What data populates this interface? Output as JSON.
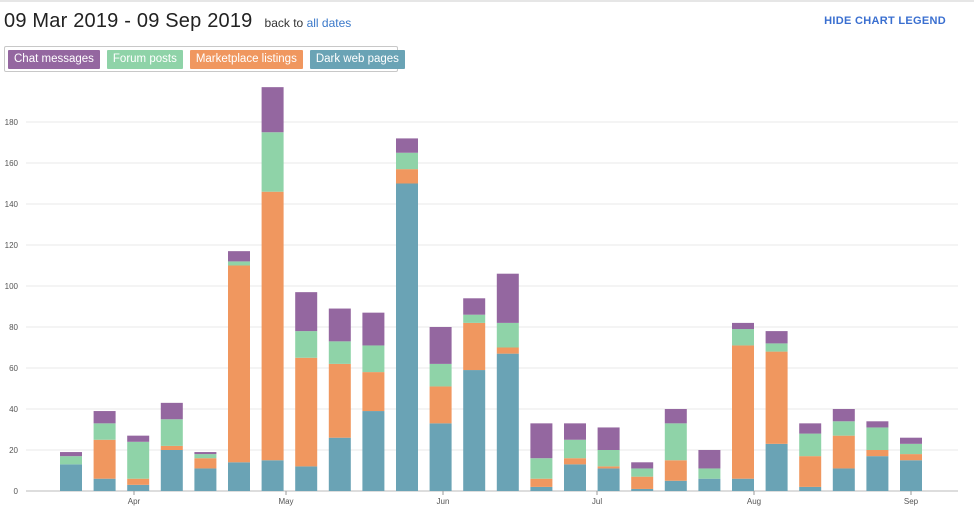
{
  "header": {
    "date_range": "09 Mar 2019 - 09 Sep 2019",
    "back_prefix": "back to",
    "back_link": "all dates",
    "hide_legend": "HIDE CHART LEGEND"
  },
  "legend": [
    {
      "label": "Chat messages",
      "color": "#9467a0"
    },
    {
      "label": "Forum posts",
      "color": "#8fd3a8"
    },
    {
      "label": "Marketplace listings",
      "color": "#f0975f"
    },
    {
      "label": "Dark web pages",
      "color": "#6aa3b5"
    }
  ],
  "chart_data": {
    "type": "bar",
    "stacked": true,
    "x_labels": [
      "Apr",
      "May",
      "Jun",
      "Jul",
      "Aug",
      "Sep"
    ],
    "y_ticks": [
      0,
      20,
      40,
      60,
      80,
      100,
      120,
      140,
      160,
      180
    ],
    "ylim": [
      0,
      195
    ],
    "grid": true,
    "series": [
      {
        "name": "Dark web pages",
        "color": "#6aa3b5",
        "values": [
          13,
          6,
          3,
          20,
          11,
          14,
          15,
          12,
          26,
          39,
          150,
          33,
          59,
          67,
          2,
          13,
          11,
          1,
          5,
          6,
          6,
          23,
          2,
          11,
          17,
          15
        ]
      },
      {
        "name": "Marketplace listings",
        "color": "#f0975f",
        "values": [
          0,
          19,
          3,
          2,
          5,
          96,
          131,
          53,
          36,
          19,
          7,
          18,
          23,
          3,
          4,
          3,
          1,
          6,
          10,
          0,
          65,
          45,
          15,
          16,
          3,
          3
        ]
      },
      {
        "name": "Forum posts",
        "color": "#8fd3a8",
        "values": [
          4,
          8,
          18,
          13,
          2,
          2,
          29,
          13,
          11,
          13,
          8,
          11,
          4,
          12,
          10,
          9,
          8,
          4,
          18,
          5,
          8,
          4,
          11,
          7,
          11,
          5
        ]
      },
      {
        "name": "Chat messages",
        "color": "#9467a0",
        "values": [
          2,
          6,
          3,
          8,
          1,
          5,
          22,
          19,
          16,
          16,
          7,
          18,
          8,
          24,
          17,
          8,
          11,
          3,
          7,
          9,
          3,
          6,
          5,
          6,
          3,
          3
        ]
      }
    ]
  }
}
